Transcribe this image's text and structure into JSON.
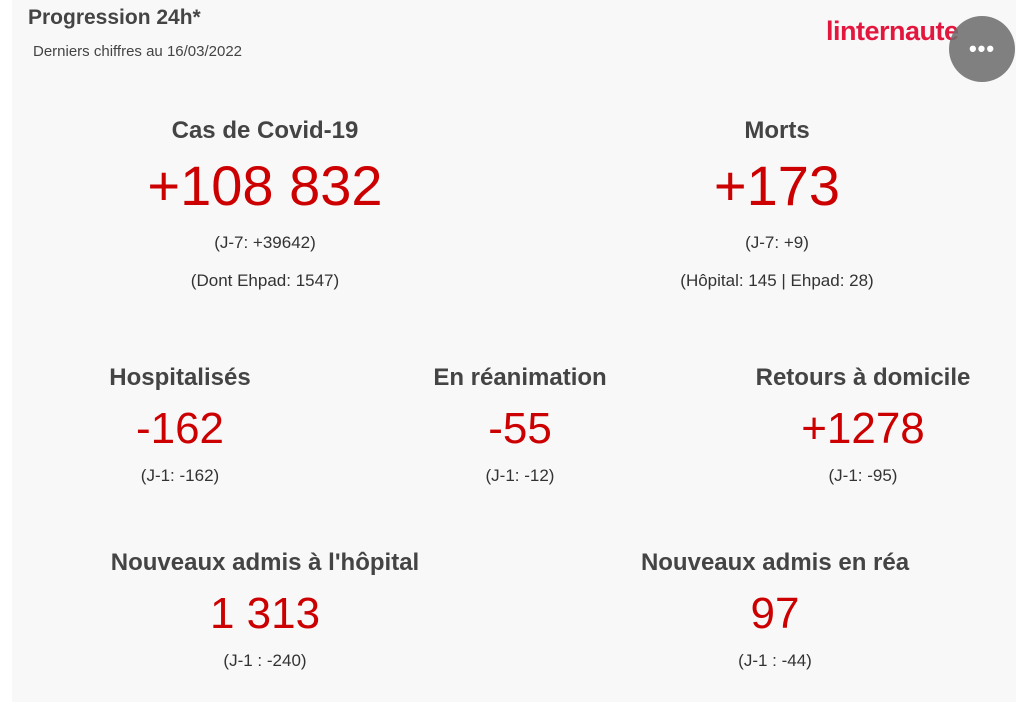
{
  "header": {
    "title": "Progression 24h*",
    "subtitle": "Derniers chiffres au 16/03/2022",
    "logo": "linternaute",
    "menu_label": "•••"
  },
  "stats": {
    "cases": {
      "label": "Cas de Covid-19",
      "value": "+108 832",
      "detail1": "(J-7: +39642)",
      "detail2": "(Dont Ehpad: 1547)"
    },
    "deaths": {
      "label": "Morts",
      "value": "+173",
      "detail1": "(J-7: +9)",
      "detail2": "(Hôpital: 145 | Ehpad: 28)"
    },
    "hospitalized": {
      "label": "Hospitalisés",
      "value": "-162",
      "detail": "(J-1: -162)"
    },
    "icu": {
      "label": "En réanimation",
      "value": "-55",
      "detail": "(J-1: -12)"
    },
    "returns": {
      "label": "Retours à domicile",
      "value": "+1278",
      "detail": "(J-1: -95)"
    },
    "new_hospital": {
      "label": "Nouveaux admis à l'hôpital",
      "value": "1 313",
      "detail": "(J-1 : -240)"
    },
    "new_icu": {
      "label": "Nouveaux admis en réa",
      "value": "97",
      "detail": "(J-1 : -44)"
    }
  },
  "colors": {
    "accent": "#cc0000",
    "brand": "#e3173e",
    "text": "#444444"
  }
}
